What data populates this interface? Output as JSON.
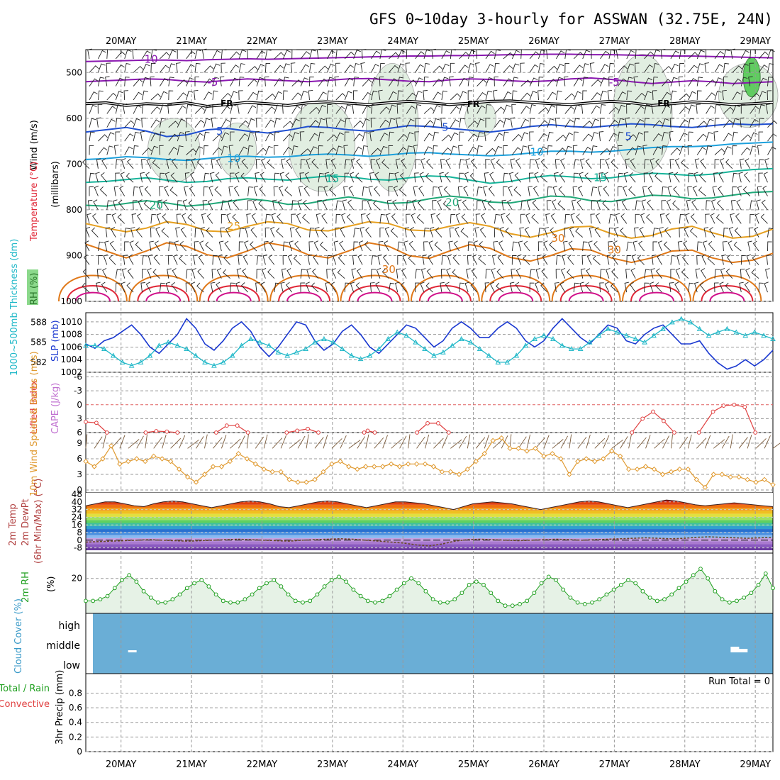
{
  "title": "GFS 0~10day 3-hourly for ASSWAN (32.75E, 24N)",
  "dates": [
    "20MAY",
    "21MAY",
    "22MAY",
    "23MAY",
    "24MAY",
    "25MAY",
    "26MAY",
    "27MAY",
    "28MAY",
    "29MAY"
  ],
  "colors": {
    "temp_purple": "#8a18b0",
    "temp_black": "#000000",
    "temp_blue": "#1f4fd0",
    "temp_cyan": "#1ca0dc",
    "temp_teal": "#16b49a",
    "temp_green": "#20a878",
    "temp_orange": "#e6a020",
    "temp_dorange": "#e07818",
    "temp_red": "#e02838",
    "temp_magenta": "#d0108a",
    "slp": "#1a38d0",
    "thick": "#20b8c8",
    "li": "#e04040",
    "wind": "#e09a30",
    "rh": "#20a020",
    "cloud": "#6aaed6"
  },
  "panels": {
    "profile": {
      "labels": {
        "wind": "Wind (m/s)",
        "temp": "Temperature (°C)",
        "rh": "RH (%)",
        "units": "(millibars)"
      },
      "yticks": [
        "500",
        "600",
        "700",
        "800",
        "900",
        "1000"
      ],
      "contour_labels": [
        "-10",
        "-5",
        "-5",
        "FR",
        "FR",
        "FR",
        "5",
        "5",
        "5",
        "10",
        "10",
        "15",
        "15",
        "20",
        "20",
        "25",
        "30",
        "30",
        "30"
      ],
      "contours": [
        {
          "name": "-10",
          "level": -10,
          "color": "#8a18b0",
          "p": [
            476,
            475,
            474,
            473,
            473,
            474,
            472,
            471,
            470,
            471,
            470,
            469,
            468,
            467,
            466,
            465,
            464,
            464,
            463,
            463,
            462,
            461,
            461,
            460,
            460,
            461,
            461,
            462,
            463,
            464,
            464,
            465,
            466,
            467,
            468
          ]
        },
        {
          "name": "-5",
          "level": -5,
          "color": "#8a18b0",
          "p": [
            520,
            518,
            516,
            514,
            515,
            519,
            521,
            517,
            514,
            516,
            518,
            520,
            517,
            514,
            513,
            516,
            519,
            520,
            516,
            514,
            515,
            518,
            520,
            518,
            514,
            512,
            515,
            520,
            524,
            521,
            518,
            520,
            524,
            522,
            520
          ]
        },
        {
          "name": "FR",
          "level": 0,
          "color": "#000000",
          "p": [
            568,
            566,
            572,
            568,
            570,
            566,
            574,
            570,
            565,
            568,
            572,
            566,
            564,
            567,
            570,
            566,
            563,
            566,
            570,
            567,
            563,
            562,
            565,
            568,
            570,
            566,
            563,
            566,
            572,
            568,
            564,
            566,
            570,
            568,
            565
          ]
        },
        {
          "name": "5",
          "level": 5,
          "color": "#1f4fd0",
          "p": [
            630,
            625,
            620,
            628,
            640,
            636,
            625,
            622,
            628,
            632,
            626,
            618,
            620,
            625,
            628,
            622,
            616,
            618,
            622,
            626,
            630,
            625,
            618,
            614,
            618,
            620,
            616,
            612,
            614,
            618,
            620,
            616,
            612,
            614,
            612
          ]
        },
        {
          "name": "10",
          "level": 10,
          "color": "#1ca0dc",
          "p": [
            690,
            688,
            684,
            686,
            690,
            692,
            688,
            684,
            683,
            685,
            684,
            680,
            678,
            680,
            683,
            680,
            676,
            675,
            678,
            680,
            682,
            680,
            676,
            672,
            672,
            674,
            672,
            668,
            664,
            662,
            662,
            660,
            656,
            654,
            652
          ]
        },
        {
          "name": "15",
          "level": 15,
          "color": "#16b49a",
          "p": [
            740,
            738,
            734,
            730,
            735,
            740,
            738,
            732,
            730,
            733,
            735,
            730,
            726,
            728,
            733,
            735,
            730,
            726,
            728,
            735,
            742,
            738,
            730,
            725,
            728,
            732,
            730,
            724,
            720,
            722,
            725,
            722,
            716,
            712,
            710
          ]
        },
        {
          "name": "20",
          "level": 20,
          "color": "#20a878",
          "p": [
            790,
            792,
            786,
            780,
            785,
            792,
            788,
            782,
            776,
            780,
            788,
            786,
            778,
            772,
            778,
            786,
            784,
            776,
            770,
            774,
            783,
            785,
            778,
            770,
            772,
            780,
            782,
            775,
            768,
            770,
            776,
            774,
            768,
            762,
            760
          ]
        },
        {
          "name": "25",
          "level": 25,
          "color": "#e6a020",
          "p": [
            830,
            840,
            848,
            840,
            826,
            832,
            846,
            848,
            836,
            826,
            830,
            844,
            846,
            836,
            826,
            830,
            844,
            846,
            836,
            828,
            836,
            852,
            860,
            850,
            838,
            836,
            852,
            862,
            856,
            842,
            836,
            850,
            862,
            858,
            842
          ]
        },
        {
          "name": "30",
          "level": 30,
          "color": "#e07818",
          "p": [
            875,
            890,
            905,
            890,
            872,
            880,
            898,
            905,
            890,
            872,
            880,
            898,
            905,
            890,
            872,
            880,
            900,
            906,
            890,
            876,
            884,
            904,
            912,
            900,
            885,
            888,
            905,
            915,
            905,
            890,
            888,
            905,
            915,
            910,
            895
          ]
        }
      ],
      "rh_areas": [
        {
          "x": [
            20.5,
            21.0
          ],
          "p": [
            600,
            740
          ]
        },
        {
          "x": [
            21.5,
            21.8
          ],
          "p": [
            610,
            730
          ]
        },
        {
          "x": [
            22.5,
            23.2
          ],
          "p": [
            560,
            760
          ]
        },
        {
          "x": [
            23.6,
            24.1
          ],
          "p": [
            480,
            760
          ]
        },
        {
          "x": [
            25.0,
            25.2
          ],
          "p": [
            560,
            640
          ]
        },
        {
          "x": [
            27.1,
            27.7
          ],
          "p": [
            460,
            720
          ]
        },
        {
          "x": [
            28.6,
            29.2
          ],
          "p": [
            480,
            620
          ]
        }
      ]
    },
    "thickness": {
      "labels": {
        "thick": "1000~500mb Thickness (dm)",
        "slp": "SLP (mb)"
      },
      "thick_ticks": [
        "582",
        "585",
        "588"
      ],
      "slp_ticks": [
        "1002",
        "1004",
        "1006",
        "1008",
        "1010"
      ],
      "slp_values": [
        1006.5,
        1005.8,
        1007,
        1007.5,
        1008.5,
        1009.5,
        1008,
        1006,
        1005,
        1006.5,
        1008,
        1010.5,
        1009,
        1006.5,
        1005.5,
        1007,
        1009,
        1010,
        1008.5,
        1006,
        1004.5,
        1006,
        1008,
        1010,
        1009.5,
        1007,
        1005.5,
        1006.5,
        1008.5,
        1009.5,
        1008,
        1006,
        1005,
        1006.5,
        1008,
        1009.5,
        1009,
        1007.5,
        1006,
        1007,
        1009,
        1010,
        1009,
        1007.5,
        1007.5,
        1009,
        1010,
        1009,
        1007,
        1006,
        1007,
        1009,
        1010.5,
        1009,
        1007.5,
        1006.5,
        1008,
        1009.5,
        1009,
        1007,
        1006.5,
        1008,
        1009,
        1009.5,
        1008,
        1006.5,
        1006.5,
        1007,
        1005,
        1003.5,
        1002.5,
        1003,
        1004,
        1003,
        1004,
        1005.5
      ],
      "thick_values": [
        584.5,
        584.5,
        584,
        583,
        582,
        581.5,
        582,
        583,
        584.5,
        585,
        584.5,
        584,
        583,
        582,
        581.5,
        582,
        583,
        584.5,
        585.5,
        585,
        584.5,
        583.5,
        583,
        583.5,
        584,
        585,
        585.5,
        585,
        584,
        583,
        582.5,
        583,
        584,
        585.5,
        586.5,
        586,
        585,
        584,
        583,
        583.5,
        584.5,
        585.5,
        585,
        584,
        583,
        582,
        582,
        583,
        584.5,
        585.5,
        586,
        585.5,
        584.5,
        584,
        584,
        585,
        586,
        587,
        586.5,
        586,
        585.5,
        585,
        586,
        587,
        588,
        588.5,
        588,
        587,
        586,
        586.5,
        587,
        586.5,
        586,
        586.5,
        586,
        585.5
      ]
    },
    "stability": {
      "labels": {
        "li": "Lifted Index",
        "cape": "CAPE (J/kg)"
      },
      "li_ticks": [
        "-6",
        "-3",
        "0",
        "3",
        "6"
      ],
      "li_segments": [
        {
          "x": [
            19.5,
            19.65,
            19.8
          ],
          "v": [
            3.7,
            3.9,
            6
          ]
        },
        {
          "x": [
            20.35,
            20.5,
            20.65,
            20.8
          ],
          "v": [
            6,
            5.7,
            5.8,
            6
          ]
        },
        {
          "x": [
            21.35,
            21.5,
            21.65,
            21.8
          ],
          "v": [
            6,
            4.5,
            4.5,
            6
          ]
        },
        {
          "x": [
            22.35,
            22.5,
            22.65,
            22.8
          ],
          "v": [
            6,
            5.6,
            5.2,
            6
          ]
        },
        {
          "x": [
            23.45,
            23.5,
            23.6
          ],
          "v": [
            6,
            5.6,
            6
          ]
        },
        {
          "x": [
            24.2,
            24.35,
            24.5,
            24.65
          ],
          "v": [
            6,
            4,
            4,
            6
          ]
        },
        {
          "x": [
            27.25,
            27.4,
            27.55,
            27.7,
            27.85
          ],
          "v": [
            6,
            3,
            1.5,
            3.5,
            6
          ]
        },
        {
          "x": [
            28.2,
            28.4,
            28.55,
            28.7,
            28.85,
            29.0
          ],
          "v": [
            6,
            1.5,
            0.2,
            0,
            0.5,
            6
          ]
        }
      ]
    },
    "wind10": {
      "labels": {
        "wind": "10m Wind Speed & Barbs (m/s)"
      },
      "yticks": [
        "0",
        "3",
        "6",
        "9"
      ],
      "speed": [
        5.5,
        4.5,
        6,
        8.5,
        5,
        5.5,
        6,
        5.5,
        6.5,
        6,
        5.5,
        4,
        2.5,
        1.5,
        3,
        4.5,
        4.5,
        5.5,
        7,
        6,
        5,
        4,
        3.5,
        3.5,
        2,
        1.5,
        1.5,
        2,
        3.5,
        5,
        5.5,
        4.5,
        4,
        4.5,
        4.5,
        4.5,
        5,
        4.5,
        5,
        5,
        5,
        4.5,
        3.5,
        3.5,
        3,
        4,
        5.5,
        7,
        9.5,
        10,
        8,
        8,
        7.5,
        8,
        6.5,
        7,
        6,
        3,
        5.5,
        6,
        5.5,
        6,
        7.5,
        6.5,
        4,
        4,
        4.5,
        4,
        3,
        3.5,
        4,
        4,
        2,
        0.5,
        3,
        3,
        2.5,
        2.5,
        2,
        1.5,
        2,
        1
      ]
    },
    "temp2m": {
      "labels": {
        "temp": "2m Temp",
        "dew": "2m DewPt",
        "minmax": "(6hr Min/Max) (°C)"
      },
      "yticks": [
        "-8",
        "0",
        "8",
        "16",
        "24",
        "32",
        "40",
        "48"
      ],
      "max": [
        36,
        38,
        40,
        40,
        38,
        36,
        35,
        38,
        40,
        41,
        40,
        38,
        36,
        34,
        36,
        38,
        40,
        41,
        40,
        38,
        35,
        34,
        36,
        38,
        40,
        41,
        40,
        38,
        36,
        34,
        36,
        38,
        40,
        40,
        39,
        38,
        36,
        34,
        32,
        35,
        38,
        39,
        40,
        39,
        38,
        36,
        34,
        32,
        34,
        36,
        38,
        40,
        41,
        40,
        38,
        36,
        34,
        36,
        38,
        40,
        42,
        41,
        39,
        37,
        36,
        37,
        38,
        39,
        38,
        37,
        36,
        35
      ],
      "dew": [
        -2,
        -1.5,
        -1,
        -0.5,
        0,
        0.5,
        0,
        -0.5,
        -1,
        -0.5,
        0,
        0.5,
        1,
        0.5,
        0,
        -0.5,
        -1,
        0,
        0.5,
        1,
        1.5,
        1,
        0,
        -1,
        -2,
        -3,
        -5,
        -6,
        -4,
        -1,
        0.5,
        1,
        0.5,
        0,
        -0.5,
        0,
        0.5,
        1,
        0.5,
        0,
        0.5,
        1,
        1.5,
        2,
        2.5,
        2,
        1.5,
        2,
        3,
        3.5,
        3,
        2.5,
        2,
        2.5,
        3
      ]
    },
    "rh2m": {
      "labels": {
        "rh": "2m RH",
        "unit": "(%)"
      },
      "yticks": [
        "20"
      ],
      "values": [
        6,
        6,
        7,
        9,
        14,
        19,
        22,
        18,
        12,
        8,
        5,
        5,
        7,
        10,
        14,
        17,
        19,
        15,
        10,
        6,
        5,
        5,
        7,
        10,
        14,
        17,
        19,
        15,
        10,
        6,
        5,
        6,
        10,
        15,
        19,
        21,
        18,
        13,
        9,
        6,
        5,
        6,
        9,
        13,
        17,
        20,
        17,
        12,
        7,
        5,
        5,
        7,
        11,
        16,
        18,
        16,
        11,
        6,
        3,
        3,
        4,
        6,
        11,
        17,
        21,
        19,
        13,
        8,
        5,
        4,
        5,
        7,
        10,
        13,
        16,
        19,
        17,
        12,
        8,
        6,
        7,
        10,
        14,
        18,
        22,
        26,
        20,
        12,
        7,
        5,
        6,
        8,
        11,
        16,
        23,
        14
      ]
    },
    "cloud": {
      "labels": {
        "cloud": "Cloud Cover (%)",
        "high": "high",
        "middle": "middle",
        "low": "low"
      }
    },
    "precip": {
      "labels": {
        "precip": "3hr Precip (mm)",
        "rain": "Total / Rain",
        "conv": "Convective",
        "run_total": "Run Total = 0"
      },
      "yticks": [
        "0",
        "0.2",
        "0.4",
        "0.6",
        "0.8"
      ]
    }
  }
}
